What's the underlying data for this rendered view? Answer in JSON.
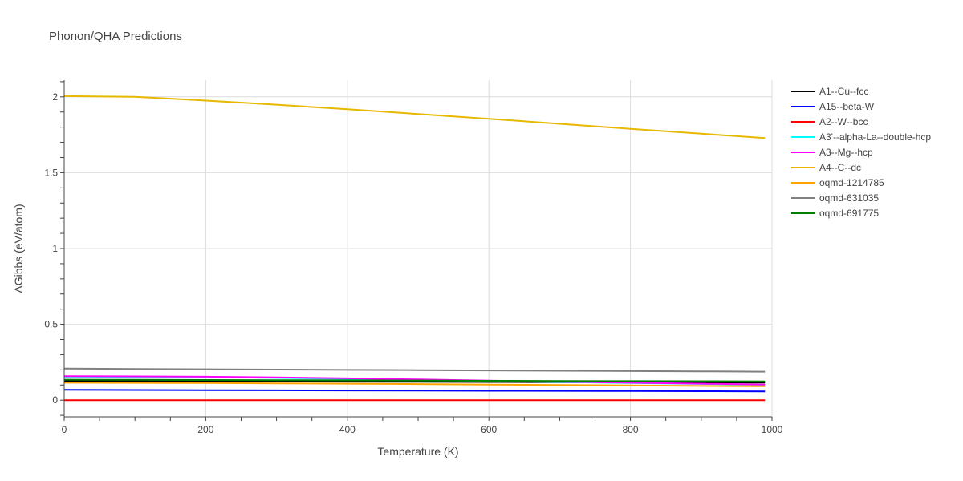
{
  "chart_data": {
    "type": "line",
    "title": "Phonon/QHA Predictions",
    "xlabel": "Temperature (K)",
    "ylabel": "ΔGibbs (eV/atom)",
    "xlim": [
      0,
      1000
    ],
    "ylim": [
      -0.11,
      2.11
    ],
    "x_ticks": [
      0,
      200,
      400,
      600,
      800,
      1000
    ],
    "x_tick_labels": [
      "0",
      "200",
      "400",
      "600",
      "800",
      "1000"
    ],
    "y_ticks": [
      0,
      0.5,
      1,
      1.5,
      2
    ],
    "y_tick_labels": [
      "0",
      "0.5",
      "1",
      "1.5",
      "2"
    ],
    "grid": true,
    "legend_position": "right",
    "x": [
      0,
      100,
      200,
      300,
      400,
      500,
      600,
      700,
      800,
      900,
      990
    ],
    "series": [
      {
        "name": "A1--Cu--fcc",
        "color": "#000000",
        "values": [
          0.125,
          0.125,
          0.124,
          0.123,
          0.122,
          0.121,
          0.12,
          0.119,
          0.118,
          0.117,
          0.116
        ]
      },
      {
        "name": "A15--beta-W",
        "color": "#0000ff",
        "values": [
          0.068,
          0.067,
          0.066,
          0.065,
          0.064,
          0.063,
          0.062,
          0.061,
          0.06,
          0.059,
          0.058
        ]
      },
      {
        "name": "A2--W--bcc",
        "color": "#ff0000",
        "values": [
          0,
          0,
          0,
          0,
          0,
          0,
          0,
          0,
          0,
          0,
          0
        ]
      },
      {
        "name": "A3'--alpha-La--double-hcp",
        "color": "#00ffff",
        "values": [
          0.155,
          0.154,
          0.152,
          0.147,
          0.141,
          0.134,
          0.127,
          0.12,
          0.113,
          0.107,
          0.101
        ]
      },
      {
        "name": "A3--Mg--hcp",
        "color": "#ff00ff",
        "values": [
          0.158,
          0.157,
          0.155,
          0.15,
          0.144,
          0.137,
          0.129,
          0.122,
          0.115,
          0.109,
          0.103
        ]
      },
      {
        "name": "A4--C--dc",
        "color": "#e6b800",
        "values": [
          2.005,
          2.0,
          1.975,
          1.948,
          1.918,
          1.887,
          1.855,
          1.822,
          1.789,
          1.757,
          1.728
        ]
      },
      {
        "name": "oqmd-1214785",
        "color": "#ffa500",
        "values": [
          0.115,
          0.114,
          0.113,
          0.111,
          0.109,
          0.106,
          0.103,
          0.1,
          0.097,
          0.094,
          0.092
        ]
      },
      {
        "name": "oqmd-631035",
        "color": "#808080",
        "values": [
          0.208,
          0.206,
          0.204,
          0.202,
          0.2,
          0.198,
          0.196,
          0.194,
          0.192,
          0.19,
          0.188
        ]
      },
      {
        "name": "oqmd-691775",
        "color": "#008000",
        "values": [
          0.135,
          0.134,
          0.133,
          0.132,
          0.131,
          0.13,
          0.128,
          0.127,
          0.126,
          0.125,
          0.124
        ]
      }
    ]
  }
}
